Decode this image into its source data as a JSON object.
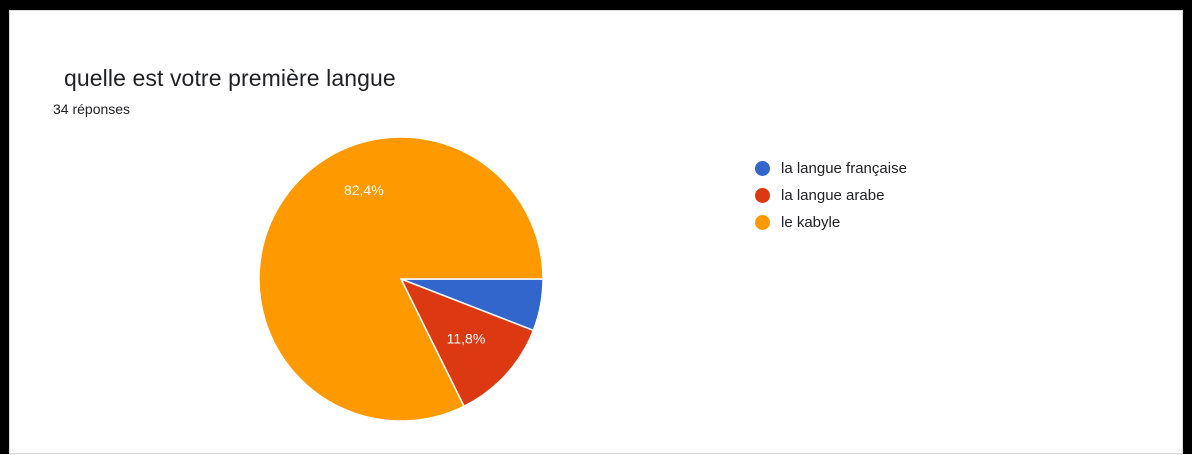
{
  "chart_data": {
    "type": "pie",
    "title": "quelle est votre première langue",
    "subtitle": "34 réponses",
    "legend_position": "right",
    "slices": [
      {
        "label": "la langue française",
        "value": 5.9,
        "color": "#3366cc",
        "display": ""
      },
      {
        "label": "la langue arabe",
        "value": 11.8,
        "color": "#dc3912",
        "display": "11,8%"
      },
      {
        "label": "le kabyle",
        "value": 82.4,
        "color": "#ff9900",
        "display": "82,4%"
      }
    ]
  }
}
